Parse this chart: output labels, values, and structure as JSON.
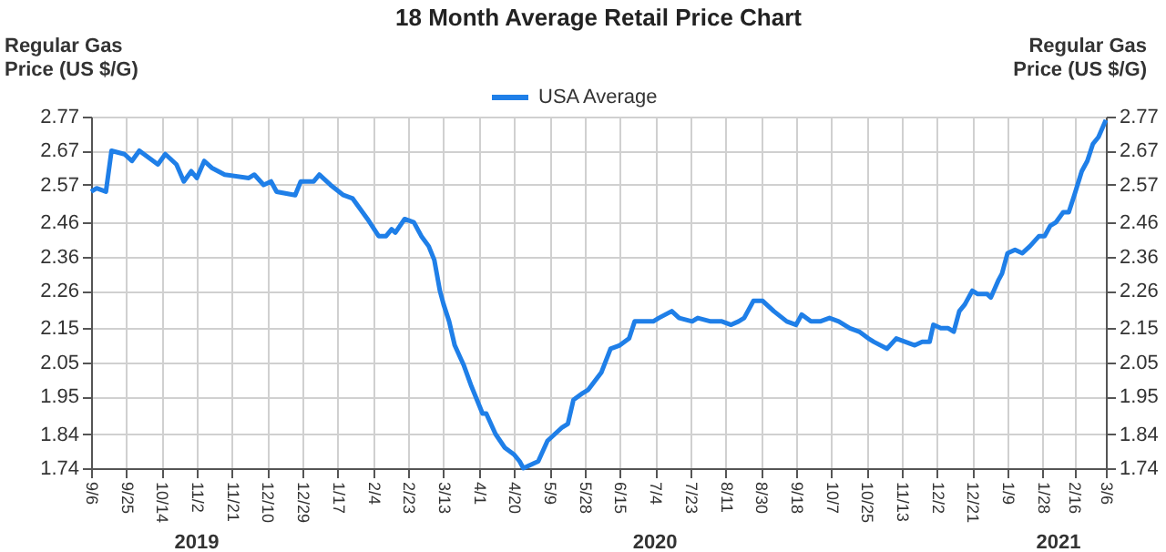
{
  "chart_data": {
    "type": "line",
    "title": "18 Month Average Retail Price Chart",
    "ylabel": "Regular Gas\nPrice (US $/G)",
    "y2label": "Regular Gas\nPrice (US $/G)",
    "x": [
      "2019-09-06",
      "2019-09-09",
      "2019-09-14",
      "2019-09-17",
      "2019-09-24",
      "2019-09-28",
      "2019-10-02",
      "2019-10-07",
      "2019-10-12",
      "2019-10-16",
      "2019-10-22",
      "2019-10-26",
      "2019-10-30",
      "2019-11-02",
      "2019-11-06",
      "2019-11-10",
      "2019-11-17",
      "2019-11-30",
      "2019-12-03",
      "2019-12-08",
      "2019-12-12",
      "2019-12-15",
      "2019-12-25",
      "2019-12-28",
      "2020-01-04",
      "2020-01-07",
      "2020-01-13",
      "2020-01-20",
      "2020-01-25",
      "2020-02-02",
      "2020-02-08",
      "2020-02-12",
      "2020-02-15",
      "2020-02-17",
      "2020-02-22",
      "2020-02-27",
      "2020-03-02",
      "2020-03-06",
      "2020-03-09",
      "2020-03-12",
      "2020-03-14",
      "2020-03-17",
      "2020-03-20",
      "2020-03-25",
      "2020-03-29",
      "2020-04-04",
      "2020-04-06",
      "2020-04-11",
      "2020-04-16",
      "2020-04-21",
      "2020-04-24",
      "2020-04-26",
      "2020-04-30",
      "2020-05-04",
      "2020-05-09",
      "2020-05-13",
      "2020-05-17",
      "2020-05-20",
      "2020-05-23",
      "2020-05-28",
      "2020-05-31",
      "2020-06-07",
      "2020-06-12",
      "2020-06-17",
      "2020-06-22",
      "2020-06-25",
      "2020-06-30",
      "2020-07-05",
      "2020-07-08",
      "2020-07-15",
      "2020-07-19",
      "2020-07-26",
      "2020-07-29",
      "2020-08-05",
      "2020-08-11",
      "2020-08-16",
      "2020-08-20",
      "2020-08-23",
      "2020-08-28",
      "2020-09-02",
      "2020-09-08",
      "2020-09-15",
      "2020-09-20",
      "2020-09-23",
      "2020-09-28",
      "2020-10-03",
      "2020-10-08",
      "2020-10-13",
      "2020-10-19",
      "2020-10-24",
      "2020-10-29",
      "2020-11-01",
      "2020-11-08",
      "2020-11-13",
      "2020-11-18",
      "2020-11-23",
      "2020-11-27",
      "2020-12-01",
      "2020-12-03",
      "2020-12-07",
      "2020-12-11",
      "2020-12-14",
      "2020-12-17",
      "2020-12-20",
      "2020-12-24",
      "2020-12-27",
      "2021-01-01",
      "2021-01-03",
      "2021-01-07",
      "2021-01-09",
      "2021-01-12",
      "2021-01-16",
      "2021-01-20",
      "2021-01-24",
      "2021-01-29",
      "2021-02-01",
      "2021-02-04",
      "2021-02-07",
      "2021-02-11",
      "2021-02-14",
      "2021-02-17",
      "2021-02-21",
      "2021-02-24",
      "2021-02-27",
      "2021-03-02",
      "2021-03-06"
    ],
    "series": [
      {
        "name": "USA Average",
        "color": "#1f7fe8",
        "values": [
          2.55,
          2.56,
          2.55,
          2.67,
          2.66,
          2.64,
          2.67,
          2.65,
          2.63,
          2.66,
          2.63,
          2.58,
          2.61,
          2.59,
          2.64,
          2.62,
          2.6,
          2.59,
          2.6,
          2.57,
          2.58,
          2.55,
          2.54,
          2.58,
          2.58,
          2.6,
          2.57,
          2.54,
          2.53,
          2.47,
          2.42,
          2.42,
          2.44,
          2.43,
          2.47,
          2.46,
          2.42,
          2.39,
          2.35,
          2.26,
          2.22,
          2.17,
          2.1,
          2.04,
          1.98,
          1.9,
          1.9,
          1.84,
          1.8,
          1.78,
          1.76,
          1.74,
          1.75,
          1.76,
          1.82,
          1.84,
          1.86,
          1.87,
          1.94,
          1.96,
          1.97,
          2.02,
          2.09,
          2.1,
          2.12,
          2.17,
          2.17,
          2.17,
          2.18,
          2.2,
          2.18,
          2.17,
          2.18,
          2.17,
          2.17,
          2.16,
          2.17,
          2.18,
          2.23,
          2.23,
          2.2,
          2.17,
          2.16,
          2.19,
          2.17,
          2.17,
          2.18,
          2.17,
          2.15,
          2.14,
          2.12,
          2.11,
          2.09,
          2.12,
          2.11,
          2.1,
          2.11,
          2.11,
          2.16,
          2.15,
          2.15,
          2.14,
          2.2,
          2.22,
          2.26,
          2.25,
          2.25,
          2.24,
          2.29,
          2.31,
          2.37,
          2.38,
          2.37,
          2.39,
          2.42,
          2.42,
          2.45,
          2.46,
          2.49,
          2.49,
          2.54,
          2.61,
          2.64,
          2.69,
          2.71,
          2.76
        ]
      }
    ],
    "xlim": [
      "2019-09-06",
      "2021-03-06"
    ],
    "xticks": [
      {
        "value": "2019-09-06",
        "label": "9/6"
      },
      {
        "value": "2019-09-25",
        "label": "9/25"
      },
      {
        "value": "2019-10-14",
        "label": "10/14"
      },
      {
        "value": "2019-11-02",
        "label": "11/2"
      },
      {
        "value": "2019-11-21",
        "label": "11/21"
      },
      {
        "value": "2019-12-10",
        "label": "12/10"
      },
      {
        "value": "2019-12-29",
        "label": "12/29"
      },
      {
        "value": "2020-01-17",
        "label": "1/17"
      },
      {
        "value": "2020-02-05",
        "label": "2/4"
      },
      {
        "value": "2020-02-24",
        "label": "2/23"
      },
      {
        "value": "2020-03-14",
        "label": "3/13"
      },
      {
        "value": "2020-04-02",
        "label": "4/1"
      },
      {
        "value": "2020-04-21",
        "label": "4/20"
      },
      {
        "value": "2020-05-10",
        "label": "5/9"
      },
      {
        "value": "2020-05-29",
        "label": "5/28"
      },
      {
        "value": "2020-06-17",
        "label": "6/15"
      },
      {
        "value": "2020-07-06",
        "label": "7/4"
      },
      {
        "value": "2020-07-25",
        "label": "7/23"
      },
      {
        "value": "2020-08-13",
        "label": "8/11"
      },
      {
        "value": "2020-09-01",
        "label": "8/30"
      },
      {
        "value": "2020-09-20",
        "label": "9/18"
      },
      {
        "value": "2020-10-09",
        "label": "10/7"
      },
      {
        "value": "2020-10-28",
        "label": "10/25"
      },
      {
        "value": "2020-11-16",
        "label": "11/13"
      },
      {
        "value": "2020-12-05",
        "label": "12/2"
      },
      {
        "value": "2020-12-24",
        "label": "12/21"
      },
      {
        "value": "2021-01-12",
        "label": "1/9"
      },
      {
        "value": "2021-01-31",
        "label": "1/28"
      },
      {
        "value": "2021-02-17",
        "label": "2/16"
      },
      {
        "value": "2021-03-06",
        "label": "3/6"
      }
    ],
    "ylim": [
      1.74,
      2.77
    ],
    "yticks": [
      1.74,
      1.84,
      1.95,
      2.05,
      2.15,
      2.26,
      2.36,
      2.46,
      2.57,
      2.67,
      2.77
    ],
    "y2lim": [
      1.74,
      2.77
    ],
    "y2ticks": [
      1.74,
      1.84,
      1.95,
      2.05,
      2.15,
      2.26,
      2.36,
      2.46,
      2.57,
      2.67,
      2.77
    ],
    "annotations": [
      "2019",
      "2020",
      "2021"
    ],
    "grid": true,
    "legend": "top",
    "marker": "none",
    "line_style": "solid"
  }
}
